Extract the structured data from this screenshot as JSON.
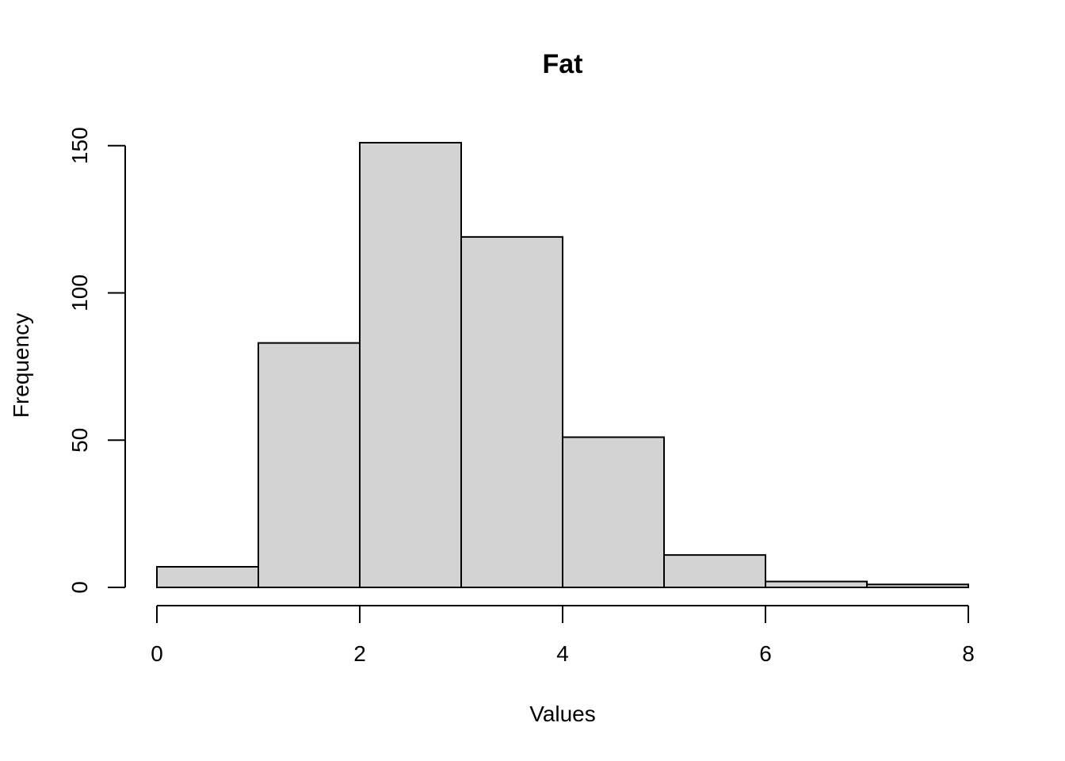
{
  "chart_data": {
    "type": "bar",
    "title": "Fat",
    "xlabel": "Values",
    "ylabel": "Frequency",
    "bins": [
      {
        "start": 0,
        "end": 1,
        "value": 7
      },
      {
        "start": 1,
        "end": 2,
        "value": 83
      },
      {
        "start": 2,
        "end": 3,
        "value": 151
      },
      {
        "start": 3,
        "end": 4,
        "value": 119
      },
      {
        "start": 4,
        "end": 5,
        "value": 51
      },
      {
        "start": 5,
        "end": 6,
        "value": 11
      },
      {
        "start": 6,
        "end": 7,
        "value": 2
      },
      {
        "start": 7,
        "end": 8,
        "value": 1
      }
    ],
    "xlim": [
      0,
      8
    ],
    "ylim": [
      0,
      151
    ],
    "xticks": [
      0,
      2,
      4,
      6,
      8
    ],
    "yticks": [
      0,
      50,
      100,
      150
    ],
    "grid": false,
    "bar_color": "#d3d3d3",
    "edge_color": "#000000"
  }
}
